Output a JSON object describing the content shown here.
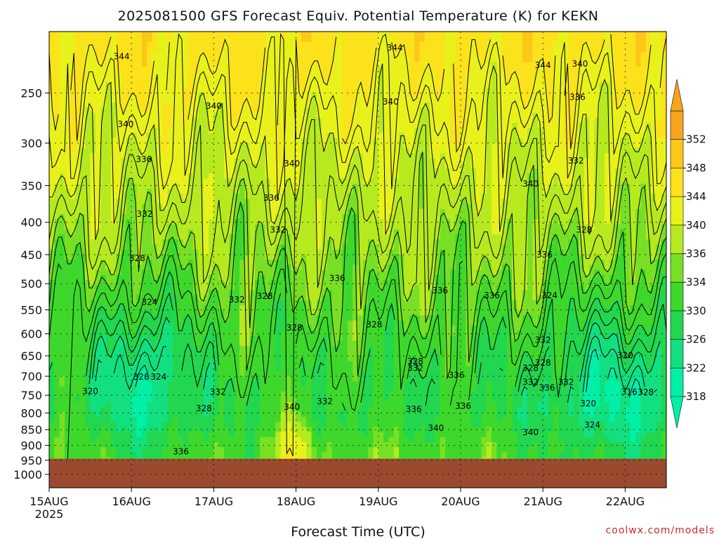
{
  "chart_data": {
    "type": "heatmap",
    "title": "2025081500 GFS Forecast Equiv. Potential Temperature (K) for KEKN",
    "xlabel": "Forecast Time (UTC)",
    "ylabel": "",
    "x_ticks": [
      "15AUG",
      "16AUG",
      "17AUG",
      "18AUG",
      "19AUG",
      "20AUG",
      "21AUG",
      "22AUG"
    ],
    "x_tick_sublabel": "2025",
    "x_range_days": [
      0,
      7.5
    ],
    "y_scale": "log-pressure",
    "y_ticks": [
      250,
      300,
      350,
      400,
      450,
      500,
      550,
      600,
      650,
      700,
      750,
      800,
      850,
      900,
      950,
      1000
    ],
    "y_range_hpa": [
      200,
      1050
    ],
    "ground_pressure_hpa": 945,
    "colorbar": {
      "levels": [
        318,
        322,
        326,
        330,
        334,
        336,
        340,
        344,
        348,
        352
      ],
      "colors": [
        "#00f0a8",
        "#12e080",
        "#22d650",
        "#3ed82c",
        "#78e024",
        "#b6ea1e",
        "#e8f21a",
        "#fce21a",
        "#fcc818",
        "#f8a41e"
      ]
    },
    "contour_labels": [
      {
        "value": "344",
        "day": 0.88,
        "p": 219
      },
      {
        "value": "344",
        "day": 4.2,
        "p": 212
      },
      {
        "value": "344",
        "day": 6.0,
        "p": 226
      },
      {
        "value": "340",
        "day": 6.45,
        "p": 225
      },
      {
        "value": "340",
        "day": 2.0,
        "p": 262
      },
      {
        "value": "340",
        "day": 0.93,
        "p": 280
      },
      {
        "value": "340",
        "day": 4.15,
        "p": 258
      },
      {
        "value": "340",
        "day": 2.95,
        "p": 323
      },
      {
        "value": "340",
        "day": 5.85,
        "p": 348
      },
      {
        "value": "336",
        "day": 6.42,
        "p": 254
      },
      {
        "value": "336",
        "day": 1.15,
        "p": 318
      },
      {
        "value": "336",
        "day": 2.7,
        "p": 366
      },
      {
        "value": "332",
        "day": 6.4,
        "p": 320
      },
      {
        "value": "332",
        "day": 1.16,
        "p": 388
      },
      {
        "value": "332",
        "day": 2.78,
        "p": 411
      },
      {
        "value": "328",
        "day": 1.07,
        "p": 456
      },
      {
        "value": "328",
        "day": 6.5,
        "p": 411
      },
      {
        "value": "336",
        "day": 3.5,
        "p": 490
      },
      {
        "value": "336",
        "day": 4.75,
        "p": 513
      },
      {
        "value": "336",
        "day": 5.38,
        "p": 522
      },
      {
        "value": "336",
        "day": 6.02,
        "p": 450
      },
      {
        "value": "324",
        "day": 1.22,
        "p": 535
      },
      {
        "value": "332",
        "day": 2.28,
        "p": 530
      },
      {
        "value": "328",
        "day": 2.62,
        "p": 523
      },
      {
        "value": "328",
        "day": 2.98,
        "p": 587
      },
      {
        "value": "328",
        "day": 3.95,
        "p": 580
      },
      {
        "value": "324",
        "day": 6.08,
        "p": 522
      },
      {
        "value": "332",
        "day": 6.0,
        "p": 614
      },
      {
        "value": "328",
        "day": 4.45,
        "p": 663
      },
      {
        "value": "332",
        "day": 4.45,
        "p": 680
      },
      {
        "value": "328",
        "day": 6.0,
        "p": 667
      },
      {
        "value": "328",
        "day": 5.85,
        "p": 680
      },
      {
        "value": "320",
        "day": 7.0,
        "p": 649
      },
      {
        "value": "336",
        "day": 4.95,
        "p": 697
      },
      {
        "value": "332",
        "day": 5.85,
        "p": 715
      },
      {
        "value": "336",
        "day": 6.05,
        "p": 730
      },
      {
        "value": "332",
        "day": 6.28,
        "p": 715
      },
      {
        "value": "328",
        "day": 1.12,
        "p": 702
      },
      {
        "value": "324",
        "day": 1.33,
        "p": 702
      },
      {
        "value": "320",
        "day": 0.5,
        "p": 739
      },
      {
        "value": "316",
        "day": 7.05,
        "p": 741
      },
      {
        "value": "328",
        "day": 7.25,
        "p": 742
      },
      {
        "value": "332",
        "day": 2.05,
        "p": 741
      },
      {
        "value": "332",
        "day": 3.35,
        "p": 767
      },
      {
        "value": "328",
        "day": 1.88,
        "p": 787
      },
      {
        "value": "340",
        "day": 2.95,
        "p": 783
      },
      {
        "value": "336",
        "day": 4.43,
        "p": 789
      },
      {
        "value": "336",
        "day": 5.03,
        "p": 780
      },
      {
        "value": "320",
        "day": 6.55,
        "p": 773
      },
      {
        "value": "340",
        "day": 4.7,
        "p": 845
      },
      {
        "value": "340",
        "day": 5.85,
        "p": 858
      },
      {
        "value": "324",
        "day": 6.6,
        "p": 836
      },
      {
        "value": "336",
        "day": 1.6,
        "p": 921
      }
    ],
    "credit": "coolwx.com/models"
  }
}
